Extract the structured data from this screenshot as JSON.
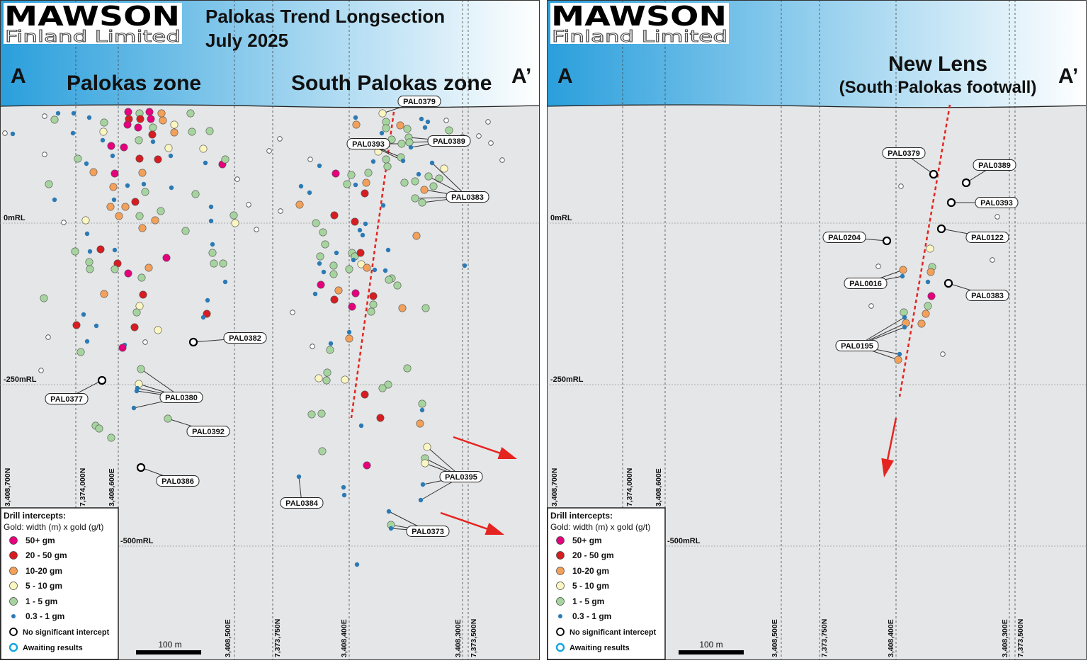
{
  "colors": {
    "header_left": "#2a9fdc",
    "header_right": "#ffffff",
    "section_bg": "#e5e6e7",
    "cat_50plus": "#e5007d",
    "cat_20_50": "#d61d22",
    "cat_10_20": "#f2a05a",
    "cat_5_10": "#fbf6c0",
    "cat_1_5": "#a6d49f",
    "cat_03_1": "#2b7ab5",
    "awaiting": "#14a5e0",
    "trend_arrow": "#e52421"
  },
  "logo": {
    "main": "MAWSON",
    "sub": "Finland Limited"
  },
  "left": {
    "title_line1": "Palokas Trend Longsection",
    "title_line2": "July 2025",
    "end_a": "A",
    "end_a_prime": "A’",
    "zone1": "Palokas zone",
    "zone2": "South Palokas zone",
    "rl_labels": [
      "0mRL",
      "-250mRL",
      "-500mRL"
    ],
    "grid_labels": [
      "3,408,700N",
      "7,374,000N",
      "3,408,600E",
      "3,408,500E",
      "7,373,750N",
      "3,408,400E",
      "3,408,300E",
      "7,373,500N"
    ],
    "holes": [
      "PAL0379",
      "PAL0393",
      "PAL0389",
      "PAL0383",
      "PAL0382",
      "PAL0377",
      "PAL0380",
      "PAL0392",
      "PAL0386",
      "PAL0384",
      "PAL0395",
      "PAL0373"
    ],
    "scale_bar": "100 m"
  },
  "right": {
    "end_a": "A",
    "end_a_prime": "A’",
    "zone_line1": "New Lens",
    "zone_line2": "(South Palokas footwall)",
    "rl_labels": [
      "0mRL",
      "-250mRL",
      "-500mRL"
    ],
    "grid_labels": [
      "3,408,700N",
      "7,374,000N",
      "3,408,600E",
      "3,408,500E",
      "7,373,750N",
      "3,408,400E",
      "3,408,300E",
      "7,373,500N"
    ],
    "holes": [
      "PAL0379",
      "PAL0389",
      "PAL0393",
      "PAL0204",
      "PAL0122",
      "PAL0016",
      "PAL0383",
      "PAL0195"
    ],
    "scale_bar": "100 m"
  },
  "legend": {
    "title": "Drill intercepts:",
    "subtitle": "Gold: width (m) x gold (g/t)",
    "items": [
      "50+ gm",
      "20 - 50 gm",
      "10-20 gm",
      "5 - 10 gm",
      "1 - 5 gm",
      "0.3 - 1 gm",
      "No significant intercept",
      "Awaiting results"
    ]
  }
}
